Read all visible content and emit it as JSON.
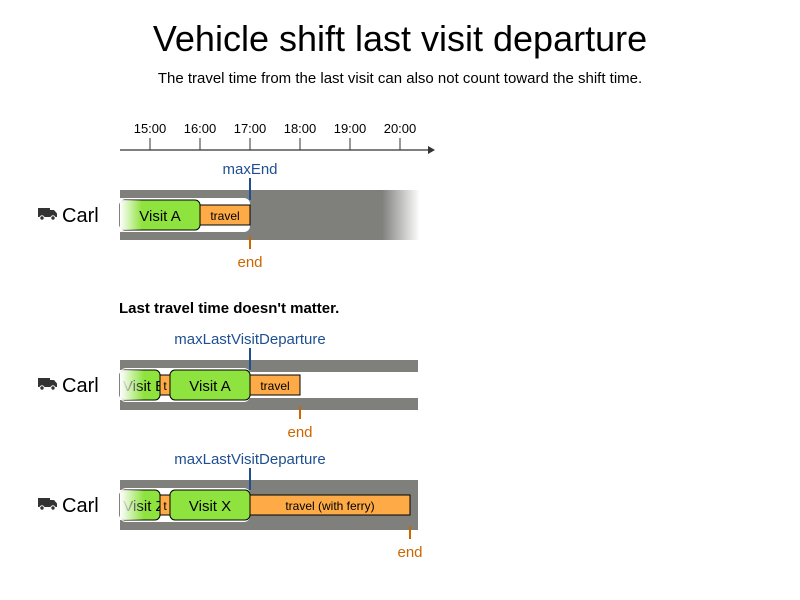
{
  "title": "Vehicle shift last visit departure",
  "subtitle": "The travel time from the last visit can also not count toward the shift time.",
  "axis": {
    "ticks": [
      "15:00",
      "16:00",
      "17:00",
      "18:00",
      "19:00",
      "20:00"
    ]
  },
  "note": "Last travel time doesn't matter.",
  "colors": {
    "shift_gray": "#7f7f7c",
    "visit_green": "#8fe33f",
    "travel_orange": "#fdaa47",
    "limit_blue": "#1f4f91",
    "end_orange": "#cc6600"
  },
  "rows": [
    {
      "vehicle": "Carl",
      "vehicle_icon": "truck-icon",
      "limit_label": "maxEnd",
      "end_label": "end",
      "visits": [
        {
          "label": "Visit A"
        }
      ],
      "travels": [
        {
          "label": "travel"
        }
      ]
    },
    {
      "vehicle": "Carl",
      "vehicle_icon": "truck-icon",
      "limit_label": "maxLastVisitDeparture",
      "end_label": "end",
      "visits": [
        {
          "label": "Visit E"
        },
        {
          "label": "Visit A"
        }
      ],
      "travels": [
        {
          "label": "t"
        },
        {
          "label": "travel"
        }
      ]
    },
    {
      "vehicle": "Carl",
      "vehicle_icon": "truck-icon",
      "limit_label": "maxLastVisitDeparture",
      "end_label": "end",
      "visits": [
        {
          "label": "Visit Z"
        },
        {
          "label": "Visit X"
        }
      ],
      "travels": [
        {
          "label": "t"
        },
        {
          "label": "travel (with ferry)"
        }
      ]
    }
  ]
}
